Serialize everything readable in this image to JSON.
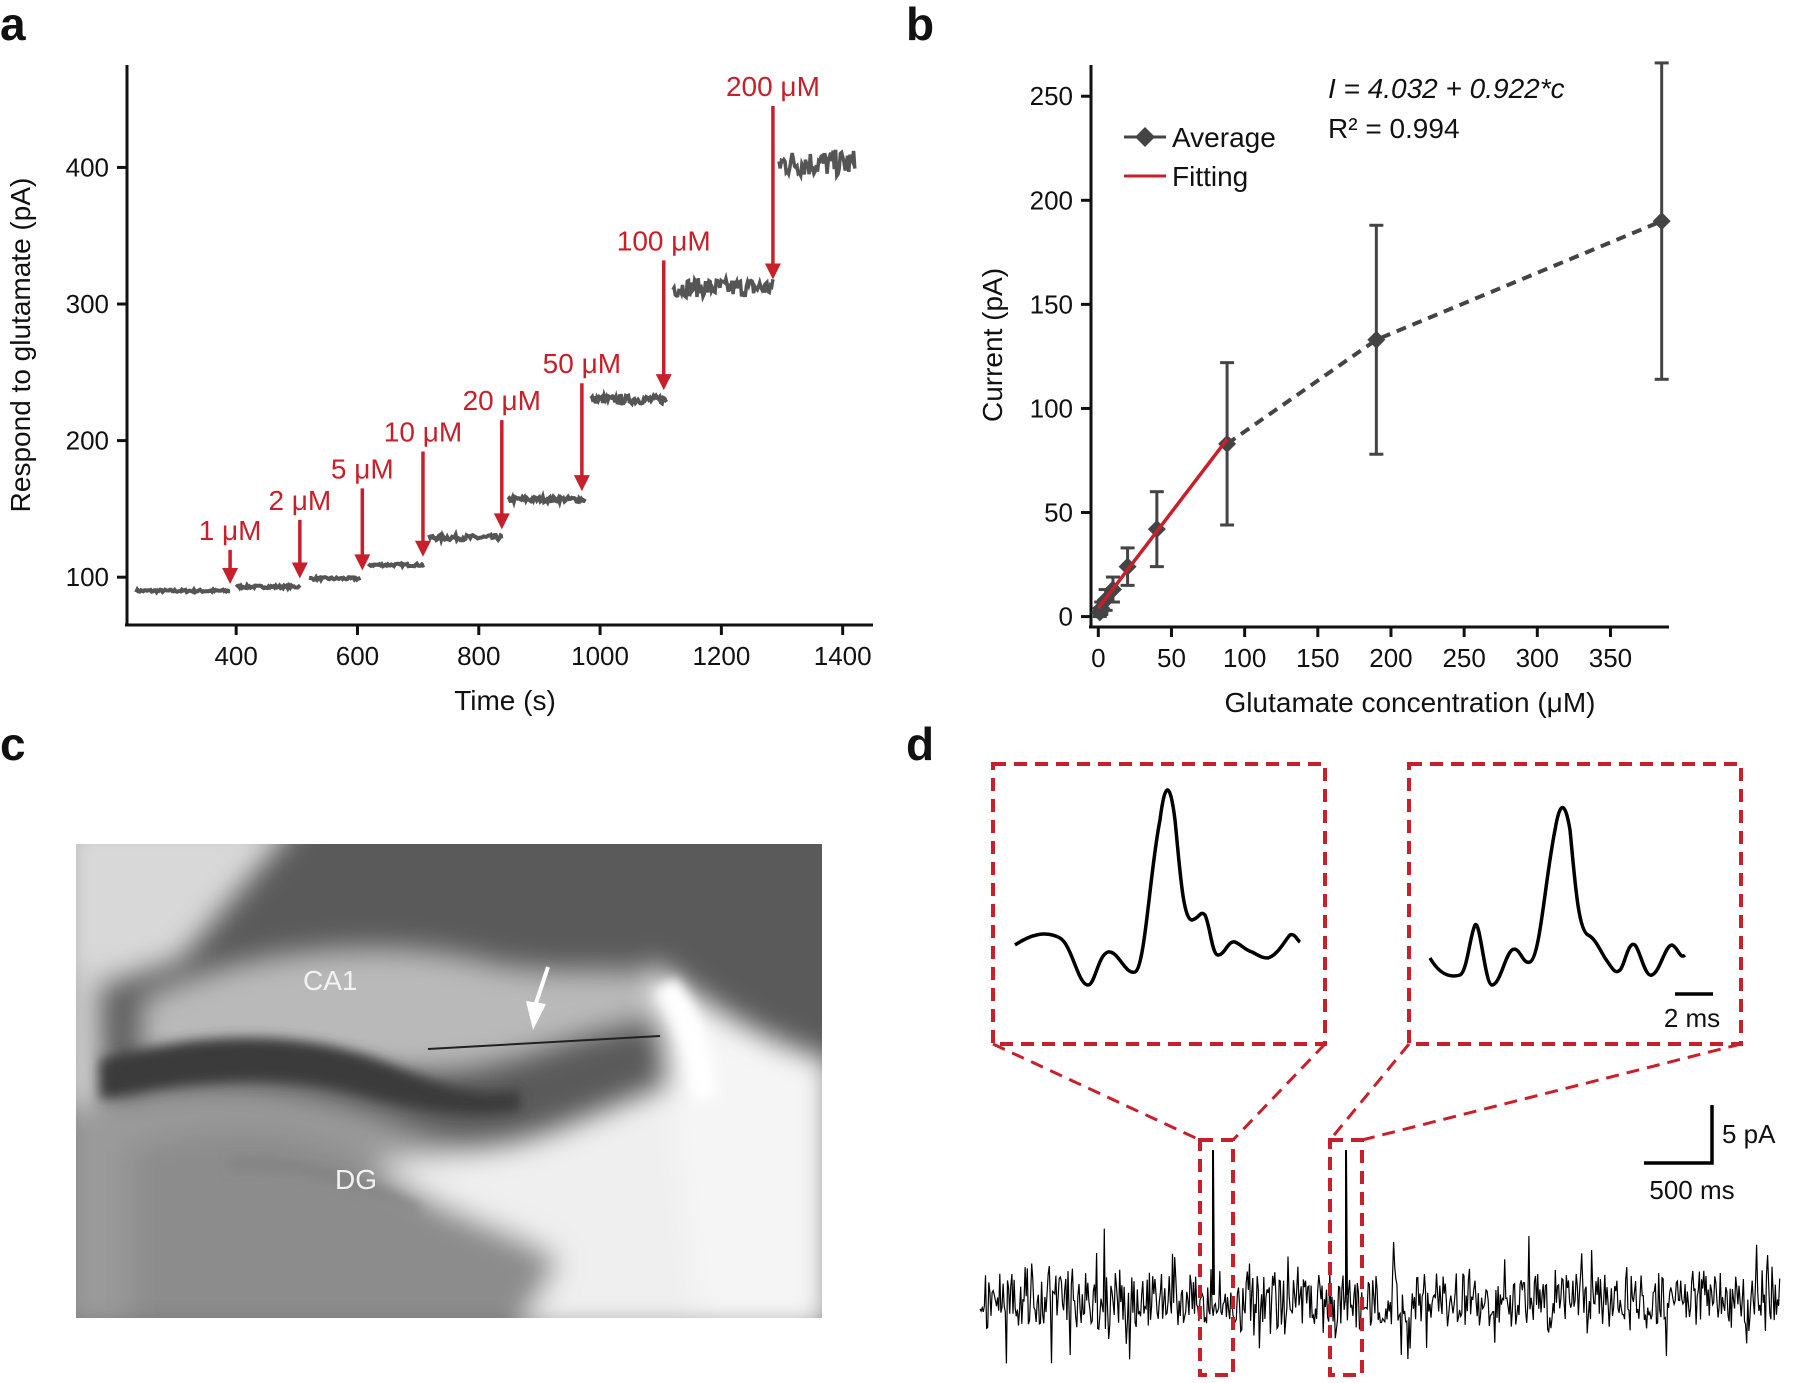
{
  "panel_labels": {
    "a": "a",
    "b": "b",
    "c": "c",
    "d": "d"
  },
  "colors": {
    "trace": "#555555",
    "red": "#c8202a",
    "marker": "#444444",
    "black": "#111111"
  },
  "chart_data": [
    {
      "id": "a",
      "type": "line",
      "xlabel": "Time (s)",
      "ylabel": "Respond to glutamate (pA)",
      "xlim": [
        220,
        1450
      ],
      "ylim": [
        65,
        475
      ],
      "xticks": [
        400,
        600,
        800,
        1000,
        1200,
        1400
      ],
      "yticks": [
        100,
        200,
        300,
        400
      ],
      "segments": [
        {
          "x": [
            235,
            390
          ],
          "y": 90,
          "noise": 1
        },
        {
          "x": [
            400,
            505
          ],
          "y": 93,
          "noise": 1
        },
        {
          "x": [
            520,
            605
          ],
          "y": 99,
          "noise": 1
        },
        {
          "x": [
            618,
            710
          ],
          "y": 109,
          "noise": 1
        },
        {
          "x": [
            718,
            840
          ],
          "y": 129,
          "noise": 2
        },
        {
          "x": [
            848,
            975
          ],
          "y": 157,
          "noise": 2
        },
        {
          "x": [
            985,
            1110
          ],
          "y": 230,
          "noise": 3
        },
        {
          "x": [
            1120,
            1285
          ],
          "y": 312,
          "noise": 7
        },
        {
          "x": [
            1295,
            1420
          ],
          "y": 403,
          "noise": 10
        }
      ],
      "annotations": [
        {
          "label": "1 μM",
          "x": 390,
          "tip": 95,
          "tail": 120
        },
        {
          "label": "2 μM",
          "x": 505,
          "tip": 99,
          "tail": 142
        },
        {
          "label": "5 μM",
          "x": 608,
          "tip": 105,
          "tail": 165
        },
        {
          "label": "10 μM",
          "x": 708,
          "tip": 115,
          "tail": 192
        },
        {
          "label": "20 μM",
          "x": 838,
          "tip": 135,
          "tail": 215
        },
        {
          "label": "50 μM",
          "x": 970,
          "tip": 163,
          "tail": 242
        },
        {
          "label": "100 μM",
          "x": 1105,
          "tip": 237,
          "tail": 332
        },
        {
          "label": "200 μM",
          "x": 1285,
          "tip": 318,
          "tail": 445
        }
      ]
    },
    {
      "id": "b",
      "type": "scatter",
      "xlabel": "Glutamate concentration (μM)",
      "ylabel": "Current (pA)",
      "xlim": [
        -5,
        390
      ],
      "ylim": [
        -5,
        265
      ],
      "xticks": [
        0,
        50,
        100,
        150,
        200,
        250,
        300,
        350
      ],
      "yticks": [
        0,
        50,
        100,
        150,
        200,
        250
      ],
      "legend": [
        "Average",
        "Fitting"
      ],
      "equation_line1": "I = 4.032 + 0.922*c",
      "equation_line2": "R² = 0.994",
      "points": [
        {
          "x": 1,
          "y": 2,
          "err": 2
        },
        {
          "x": 2,
          "y": 4,
          "err": 3
        },
        {
          "x": 5,
          "y": 8,
          "err": 5
        },
        {
          "x": 10,
          "y": 13,
          "err": 6
        },
        {
          "x": 20,
          "y": 24,
          "err": 9
        },
        {
          "x": 40,
          "y": 42,
          "err": 18
        },
        {
          "x": 88,
          "y": 83,
          "err": 39
        },
        {
          "x": 190,
          "y": 133,
          "err": 55
        },
        {
          "x": 385,
          "y": 190,
          "err": 76
        }
      ],
      "fit": {
        "intercept": 4.032,
        "slope": 0.922,
        "x_range": [
          0,
          88
        ]
      }
    }
  ],
  "panel_c": {
    "labels": [
      {
        "text": "CA1"
      },
      {
        "text": "DG"
      }
    ]
  },
  "panel_d": {
    "scale_y": "5 pA",
    "scale_x": "500 ms",
    "inset_scale": "2 ms"
  }
}
